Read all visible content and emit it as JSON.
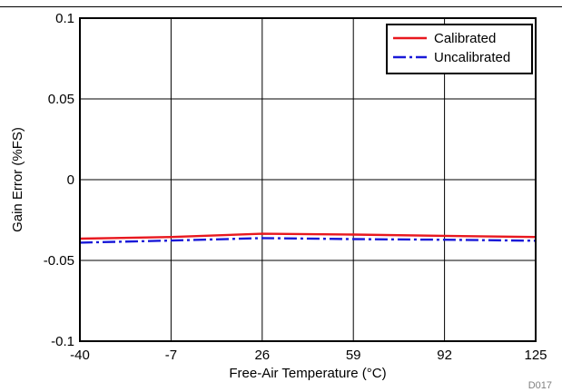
{
  "figure_id": "D017",
  "chart_data": {
    "type": "line",
    "xlabel": "Free-Air Temperature (°C)",
    "ylabel": "Gain Error (%FS)",
    "x_ticks": [
      -40,
      -7,
      26,
      59,
      92,
      125
    ],
    "y_ticks": [
      0.1,
      0.05,
      0,
      -0.05,
      -0.1
    ],
    "y_tick_labels": [
      "0.1",
      "0.05",
      "0",
      "-0.05",
      "-0.1"
    ],
    "xlim": [
      -40,
      125
    ],
    "ylim": [
      -0.1,
      0.1
    ],
    "grid": true,
    "legend_position": "top-right",
    "series": [
      {
        "name": "Calibrated",
        "color": "#e8181f",
        "style": "solid",
        "x": [
          -40,
          -7,
          26,
          59,
          92,
          125
        ],
        "y": [
          -0.0365,
          -0.0355,
          -0.0335,
          -0.034,
          -0.0348,
          -0.0355
        ]
      },
      {
        "name": "Uncalibrated",
        "color": "#1a1ad8",
        "style": "dash-dot",
        "x": [
          -40,
          -7,
          26,
          59,
          92,
          125
        ],
        "y": [
          -0.039,
          -0.0377,
          -0.0362,
          -0.0368,
          -0.0372,
          -0.0378
        ]
      }
    ]
  }
}
